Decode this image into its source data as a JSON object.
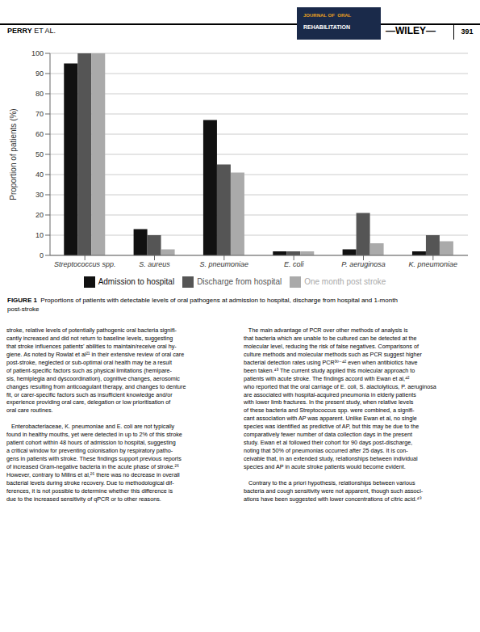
{
  "chart_data": {
    "type": "bar",
    "categories": [
      "Streptococcus spp.",
      "S. aureus",
      "S. pneumoniae",
      "E. coli",
      "P. aeruginosa",
      "K. pneumoniae"
    ],
    "series": [
      {
        "name": "Admission to hospital",
        "color": "#111111",
        "values": [
          95,
          13,
          67,
          2,
          3,
          2
        ]
      },
      {
        "name": "Discharge from hospital",
        "color": "#555555",
        "values": [
          100,
          10,
          45,
          2,
          21,
          10
        ]
      },
      {
        "name": "One month post stroke",
        "color": "#aaaaaa",
        "values": [
          100,
          3,
          41,
          2,
          6,
          7
        ]
      }
    ],
    "ylabel": "Proportion of patients (%)",
    "ylim": [
      0,
      100
    ],
    "yticks": [
      0,
      10,
      20,
      30,
      40,
      50,
      60,
      70,
      80,
      90,
      100
    ],
    "grid": true,
    "legend": "bottom",
    "annotations": [
      "PERRY",
      " ET AL.",
      "JOURNAL OF  ORAL",
      "REHABILITATION",
      "—WILEY—",
      "391",
      "FIGURE 1",
      "  Proportions of patients with detectable levels of oral pathogens at admission to hospital, discharge from hospital and 1-month\npost-stroke",
      "stroke, relative levels of potentially pathogenic oral bacteria signifi-\ncantly increased and did not return to baseline levels, suggesting\nthat stroke influences patients’ abilities to maintain/receive oral hy-\ngiene. As noted by Rowlat et al²¹ in their extensive review of oral care\npost-stroke, neglected or sub-optimal oral health may be a result\nof patient-specific factors such as physical limitations (hemipare-\nsis, hemiplegia and dyscoordination), cognitive changes, aerosomic\nchanges resulting from anticoagulant therapy, and changes to denture\nfit, or carer-specific factors such as insufficient knowledge and/or\nexperience providing oral care, delegation or low prioritisation of\noral care routines.\n\n   Enterobacteriaceae, K. pneumoniae and E. coli are not typically\nfound in healthy mouths, yet were detected in up to 2% of this stroke\npatient cohort within 48 hours of admission to hospital, suggesting\na critical window for preventing colonisation by respiratory patho-\ngens in patients with stroke. These findings support previous reports\nof increased Gram-negative bacteria in the acute phase of stroke.²⁶\nHowever, contrary to Millns et al,²⁶ there was no decrease in overall\nbacterial levels during stroke recovery. Due to methodological dif-\nferences, it is not possible to determine whether this difference is\ndue to the increased sensitivity of qPCR or to other reasons.",
      "   The main advantage of PCR over other methods of analysis is\nthat bacteria which are unable to be cultured can be detected at the\nmolecular level, reducing the risk of false negatives. Comparisons of\nculture methods and molecular methods such as PCR suggest higher\nbacterial detection rates using PCR³⁰⁻⁴² even when antibiotics have\nbeen taken.⁴³ The current study applied this molecular approach to\npatients with acute stroke. The findings accord with Ewan et al,⁴²\nwho reported that the oral carriage of E. coli, S. alactolyticus, P. aeruginosa\nare associated with hospital-acquired pneumonia in elderly patients\nwith lower limb fractures. In the present study, when relative levels\nof these bacteria and Streptococcus spp. were combined, a signifi-\ncant association with AP was apparent. Unlike Ewan et al, no single\nspecies was identified as predictive of AP, but this may be due to the\ncomparatively fewer number of data collection days in the present\nstudy. Ewan et al followed their cohort for 90 days post-discharge,\nnoting that 50% of pneumonias occurred after 25 days. It is con-\nceivable that, in an extended study, relationships between individual\nspecies and AP in acute stroke patients would become evident.\n\n   Contrary to the a priori hypothesis, relationships between various\nbacteria and cough sensitivity were not apparent, though such associ-\nations have been suggested with lower concentrations of citric acid.⁴⁹"
    ]
  }
}
